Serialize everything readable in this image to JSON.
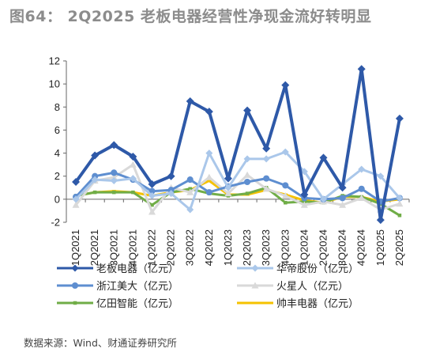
{
  "title": "图64：   2Q2025 老板电器经营性净现金流好转明显",
  "source": "数据来源：Wind、财通证券研究所",
  "chart_data": {
    "type": "line",
    "title": "2Q2025 老板电器经营性净现金流好转明显",
    "ylim": [
      -2,
      12
    ],
    "yticks": [
      -2,
      0,
      2,
      4,
      6,
      8,
      10,
      12
    ],
    "categories": [
      "1Q2021",
      "2Q2021",
      "3Q2021",
      "4Q2021",
      "1Q2022",
      "2Q2022",
      "3Q2022",
      "4Q2022",
      "1Q2023",
      "2Q2023",
      "3Q2023",
      "4Q2023",
      "1Q2024",
      "2Q2024",
      "3Q2024",
      "4Q2024",
      "1Q2025",
      "2Q2025"
    ],
    "series": [
      {
        "name": "老板电器（亿元）",
        "color": "#2e59a8",
        "marker": "diamond",
        "values": [
          1.5,
          3.8,
          4.7,
          3.7,
          1.3,
          2.0,
          8.5,
          7.6,
          1.8,
          7.7,
          4.4,
          9.9,
          0.4,
          3.6,
          1.0,
          11.3,
          -1.8,
          7.0
        ]
      },
      {
        "name": "华帝股份（亿元）",
        "color": "#aac7ea",
        "marker": "diamond",
        "values": [
          0.0,
          1.7,
          1.6,
          1.8,
          0.3,
          0.5,
          -0.9,
          4.0,
          1.0,
          3.5,
          3.5,
          4.1,
          2.4,
          0.0,
          1.3,
          2.6,
          2.0,
          0.1
        ]
      },
      {
        "name": "浙江美大（亿元）",
        "color": "#5e8ed0",
        "marker": "circle",
        "values": [
          0.2,
          2.0,
          2.3,
          1.7,
          0.7,
          0.8,
          1.7,
          0.6,
          1.1,
          1.5,
          1.8,
          1.2,
          0.1,
          0.0,
          0.1,
          0.9,
          -0.2,
          0.1
        ]
      },
      {
        "name": "火星人（亿元）",
        "color": "#d9d9d9",
        "marker": "triangle",
        "values": [
          -0.5,
          1.6,
          1.9,
          3.0,
          -1.1,
          1.0,
          0.6,
          1.9,
          0.5,
          2.1,
          0.9,
          0.3,
          -0.5,
          -0.2,
          -0.5,
          0.1,
          -0.9,
          -0.4
        ]
      },
      {
        "name": "亿田智能（亿元）",
        "color": "#70ad47",
        "marker": "square",
        "values": [
          0.3,
          0.6,
          0.6,
          0.6,
          -0.5,
          0.6,
          0.9,
          0.5,
          0.3,
          0.5,
          1.0,
          -0.3,
          -0.2,
          -0.3,
          0.3,
          0.2,
          -0.4,
          -1.4
        ]
      },
      {
        "name": "帅丰电器（亿元）",
        "color": "#f5c200",
        "marker": "dash",
        "values": [
          0.3,
          0.6,
          0.7,
          0.6,
          0.3,
          0.6,
          0.8,
          1.6,
          0.4,
          0.4,
          0.8,
          0.4,
          -0.1,
          -0.3,
          0.2,
          0.2,
          -0.2,
          0.0
        ]
      }
    ],
    "legend": "bottom, 3 rows x 2 columns",
    "grid": false
  }
}
